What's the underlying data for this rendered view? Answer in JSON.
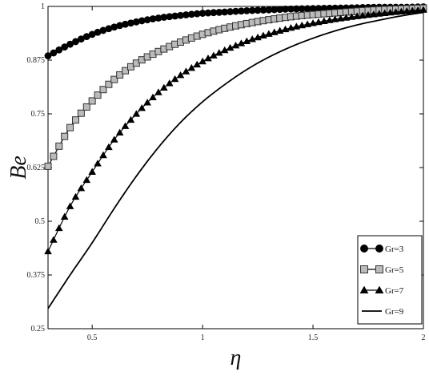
{
  "chart_data": {
    "type": "line",
    "title": "",
    "xlabel": "η",
    "ylabel": "Be",
    "xlim": [
      0.3,
      2
    ],
    "ylim": [
      0.25,
      1
    ],
    "xticks": [
      0.5,
      1,
      1.5,
      2
    ],
    "xtick_labels": [
      "0.5",
      "1",
      "1.5",
      "2"
    ],
    "yticks": [
      0.25,
      0.375,
      0.5,
      0.625,
      0.75,
      0.875,
      1
    ],
    "ytick_labels": [
      "0.25",
      "0.375",
      "0.5",
      "0.625",
      "0.75",
      "0.875",
      "1"
    ],
    "grid": false,
    "legend_position": "bottom-right",
    "series": [
      {
        "name": "Gr=3",
        "marker": "circle",
        "x": [
          0.3,
          0.4,
          0.5,
          0.6,
          0.7,
          0.8,
          0.9,
          1.0,
          1.1,
          1.2,
          1.3,
          1.4,
          1.5,
          1.6,
          1.7,
          1.8,
          1.9,
          2.0
        ],
        "y": [
          0.885,
          0.912,
          0.935,
          0.952,
          0.964,
          0.973,
          0.979,
          0.984,
          0.987,
          0.99,
          0.992,
          0.994,
          0.995,
          0.996,
          0.997,
          0.998,
          0.998,
          0.999
        ]
      },
      {
        "name": "Gr=5",
        "marker": "square",
        "x": [
          0.3,
          0.4,
          0.5,
          0.6,
          0.7,
          0.8,
          0.9,
          1.0,
          1.1,
          1.2,
          1.3,
          1.4,
          1.5,
          1.6,
          1.7,
          1.8,
          1.9,
          2.0
        ],
        "y": [
          0.628,
          0.718,
          0.78,
          0.83,
          0.868,
          0.895,
          0.917,
          0.935,
          0.949,
          0.96,
          0.969,
          0.976,
          0.981,
          0.985,
          0.989,
          0.992,
          0.994,
          0.996
        ]
      },
      {
        "name": "Gr=7",
        "marker": "triangle",
        "x": [
          0.3,
          0.4,
          0.5,
          0.6,
          0.7,
          0.8,
          0.9,
          1.0,
          1.1,
          1.2,
          1.3,
          1.4,
          1.5,
          1.6,
          1.7,
          1.8,
          1.9,
          2.0
        ],
        "y": [
          0.43,
          0.535,
          0.615,
          0.69,
          0.75,
          0.8,
          0.84,
          0.872,
          0.898,
          0.919,
          0.936,
          0.95,
          0.961,
          0.97,
          0.977,
          0.983,
          0.988,
          0.992
        ]
      },
      {
        "name": "Gr=9",
        "marker": "none",
        "x": [
          0.3,
          0.4,
          0.5,
          0.6,
          0.7,
          0.8,
          0.9,
          1.0,
          1.1,
          1.2,
          1.3,
          1.4,
          1.5,
          1.6,
          1.7,
          1.8,
          1.9,
          2.0
        ],
        "y": [
          0.297,
          0.375,
          0.45,
          0.53,
          0.605,
          0.672,
          0.73,
          0.778,
          0.818,
          0.853,
          0.882,
          0.906,
          0.926,
          0.943,
          0.957,
          0.968,
          0.978,
          0.986
        ]
      }
    ]
  }
}
